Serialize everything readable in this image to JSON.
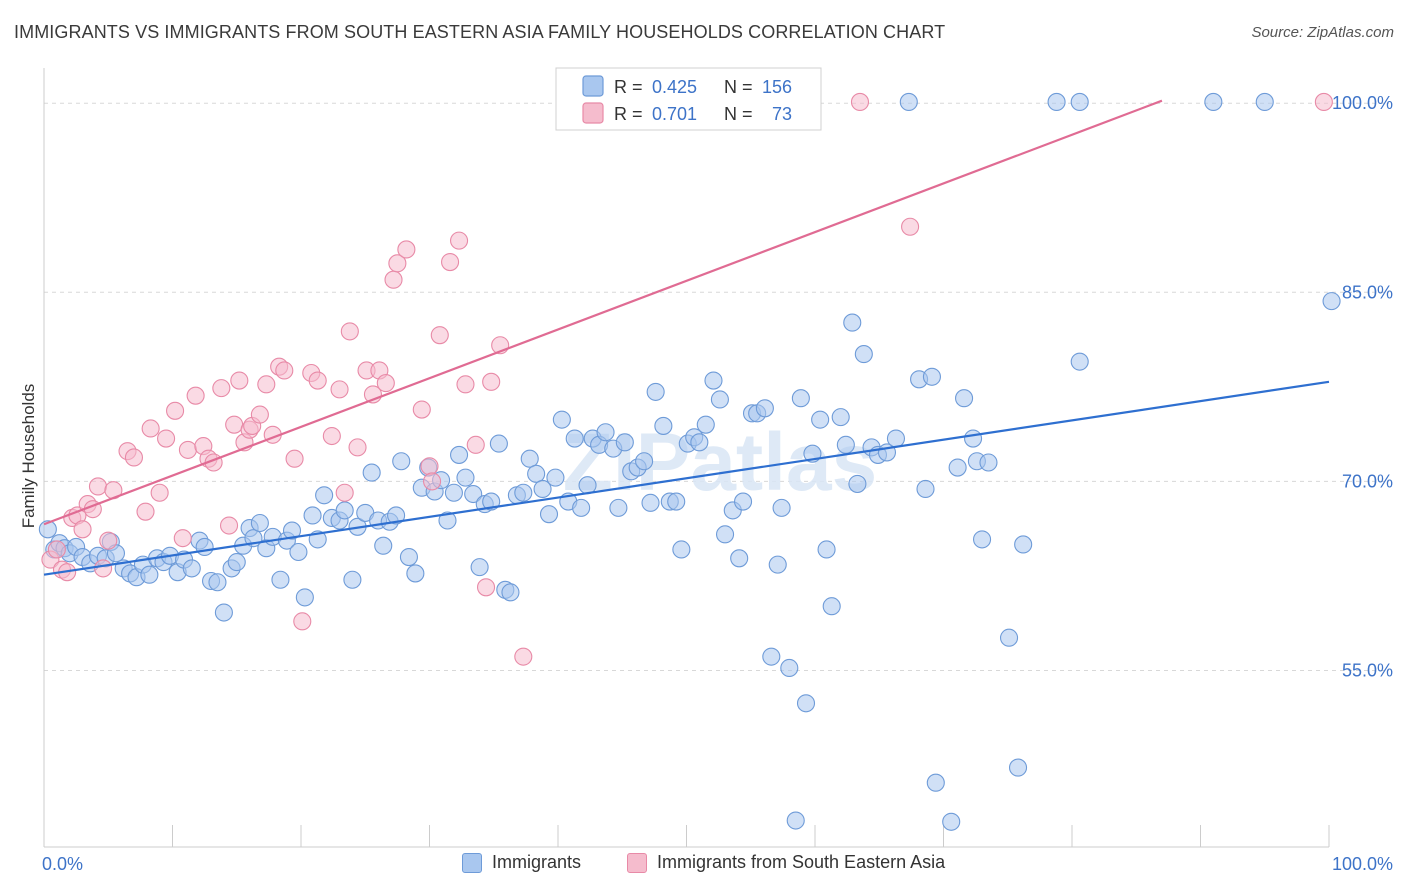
{
  "title": "IMMIGRANTS VS IMMIGRANTS FROM SOUTH EASTERN ASIA FAMILY HOUSEHOLDS CORRELATION CHART",
  "source": "Source: ZipAtlas.com",
  "watermark": "ZIPatlas",
  "colors": {
    "blue_fill": "#a9c7ef",
    "blue_stroke": "#6e9bd8",
    "blue_line": "#2e6fd0",
    "pink_fill": "#f5bccd",
    "pink_stroke": "#e88aa7",
    "pink_line": "#e06b93",
    "axis_label": "#3d73c8",
    "grid": "#d8d8d8"
  },
  "legend_top": {
    "rows": [
      {
        "r_label": "R =",
        "r_value": "0.425",
        "n_label": "N =",
        "n_value": "156"
      },
      {
        "r_label": "R =",
        "r_value": "0.701",
        "n_label": "N =",
        "n_value": "73"
      }
    ]
  },
  "legend_bottom": {
    "items": [
      "Immigrants",
      "Immigrants from South Eastern Asia"
    ]
  },
  "chart_data": {
    "type": "scatter",
    "title": "IMMIGRANTS VS IMMIGRANTS FROM SOUTH EASTERN ASIA FAMILY HOUSEHOLDS CORRELATION CHART",
    "xlabel": "",
    "ylabel": "Family Households",
    "xlim": [
      0,
      100
    ],
    "ylim": [
      41,
      102
    ],
    "x_tick_labels": [
      "0.0%",
      "100.0%"
    ],
    "y_ticks": [
      55,
      70,
      85,
      100
    ],
    "y_tick_labels": [
      "55.0%",
      "70.0%",
      "85.0%",
      "100.0%"
    ],
    "grid": true,
    "series": [
      {
        "name": "Immigrants",
        "color": "#6e9bd8",
        "trend": {
          "x": [
            0,
            100
          ],
          "y": [
            62.6,
            77.9
          ]
        },
        "points": [
          [
            0.3,
            66.2
          ],
          [
            0.8,
            64.6
          ],
          [
            1.2,
            65.1
          ],
          [
            1.6,
            64.7
          ],
          [
            2,
            64.3
          ],
          [
            2.5,
            64.8
          ],
          [
            3,
            64
          ],
          [
            3.6,
            63.5
          ],
          [
            4.2,
            64.1
          ],
          [
            4.8,
            63.9
          ],
          [
            5.2,
            65.2
          ],
          [
            5.6,
            64.3
          ],
          [
            6.2,
            63.1
          ],
          [
            6.7,
            62.7
          ],
          [
            7.2,
            62.4
          ],
          [
            7.7,
            63.4
          ],
          [
            8.2,
            62.6
          ],
          [
            8.8,
            63.9
          ],
          [
            9.3,
            63.6
          ],
          [
            9.8,
            64.1
          ],
          [
            10.4,
            62.8
          ],
          [
            10.9,
            63.8
          ],
          [
            11.5,
            63.1
          ],
          [
            12.1,
            65.3
          ],
          [
            12.5,
            64.8
          ],
          [
            13,
            62.1
          ],
          [
            13.5,
            62
          ],
          [
            14,
            59.6
          ],
          [
            14.6,
            63.1
          ],
          [
            15,
            63.6
          ],
          [
            15.5,
            64.9
          ],
          [
            16,
            66.3
          ],
          [
            16.3,
            65.5
          ],
          [
            16.8,
            66.7
          ],
          [
            17.3,
            64.7
          ],
          [
            17.8,
            65.6
          ],
          [
            18.4,
            62.2
          ],
          [
            18.9,
            65.3
          ],
          [
            19.3,
            66.1
          ],
          [
            19.8,
            64.4
          ],
          [
            20.3,
            60.8
          ],
          [
            20.9,
            67.3
          ],
          [
            21.3,
            65.4
          ],
          [
            21.8,
            68.9
          ],
          [
            22.4,
            67.1
          ],
          [
            23,
            66.9
          ],
          [
            23.4,
            67.7
          ],
          [
            24,
            62.2
          ],
          [
            24.4,
            66.4
          ],
          [
            25,
            67.5
          ],
          [
            25.5,
            70.7
          ],
          [
            26,
            66.9
          ],
          [
            26.4,
            64.9
          ],
          [
            26.9,
            66.8
          ],
          [
            27.4,
            67.3
          ],
          [
            27.8,
            71.6
          ],
          [
            28.4,
            64
          ],
          [
            28.9,
            62.7
          ],
          [
            29.4,
            69.5
          ],
          [
            29.9,
            71.1
          ],
          [
            30.4,
            69.2
          ],
          [
            30.9,
            70.1
          ],
          [
            31.4,
            66.9
          ],
          [
            31.9,
            69.1
          ],
          [
            32.3,
            72.1
          ],
          [
            32.8,
            70.3
          ],
          [
            33.4,
            69
          ],
          [
            33.9,
            63.2
          ],
          [
            34.3,
            68.2
          ],
          [
            34.8,
            68.4
          ],
          [
            35.4,
            73
          ],
          [
            35.9,
            61.4
          ],
          [
            36.3,
            61.2
          ],
          [
            36.8,
            68.9
          ],
          [
            37.3,
            69.1
          ],
          [
            37.8,
            71.8
          ],
          [
            38.3,
            70.6
          ],
          [
            38.8,
            69.4
          ],
          [
            39.3,
            67.4
          ],
          [
            39.8,
            70.3
          ],
          [
            40.3,
            74.9
          ],
          [
            40.8,
            68.4
          ],
          [
            41.3,
            73.4
          ],
          [
            41.8,
            67.9
          ],
          [
            42.3,
            69.7
          ],
          [
            42.7,
            73.4
          ],
          [
            43.2,
            72.9
          ],
          [
            43.7,
            73.9
          ],
          [
            44.3,
            72.6
          ],
          [
            44.7,
            67.9
          ],
          [
            45.2,
            73.1
          ],
          [
            45.7,
            70.8
          ],
          [
            46.2,
            71.1
          ],
          [
            46.7,
            71.6
          ],
          [
            47.2,
            68.3
          ],
          [
            47.6,
            77.1
          ],
          [
            48.2,
            74.4
          ],
          [
            48.7,
            68.4
          ],
          [
            49.2,
            68.4
          ],
          [
            49.6,
            64.6
          ],
          [
            50.1,
            73
          ],
          [
            50.6,
            73.5
          ],
          [
            51,
            73.1
          ],
          [
            51.5,
            74.5
          ],
          [
            52.1,
            78
          ],
          [
            52.6,
            76.5
          ],
          [
            53,
            65.8
          ],
          [
            53.6,
            67.7
          ],
          [
            54.1,
            63.9
          ],
          [
            54.4,
            68.4
          ],
          [
            55.1,
            75.4
          ],
          [
            55.5,
            75.4
          ],
          [
            56.1,
            75.8
          ],
          [
            56.6,
            56.1
          ],
          [
            57.1,
            63.4
          ],
          [
            57.4,
            67.9
          ],
          [
            58,
            55.2
          ],
          [
            58.5,
            43.1
          ],
          [
            58.9,
            76.6
          ],
          [
            59.3,
            52.4
          ],
          [
            59.8,
            72.2
          ],
          [
            60.4,
            74.9
          ],
          [
            60.9,
            64.6
          ],
          [
            61.3,
            60.1
          ],
          [
            62,
            75.1
          ],
          [
            62.4,
            72.9
          ],
          [
            62.9,
            82.6
          ],
          [
            63.3,
            69.8
          ],
          [
            63.8,
            80.1
          ],
          [
            64.4,
            72.7
          ],
          [
            64.9,
            72.1
          ],
          [
            65.6,
            72.3
          ],
          [
            66.3,
            73.4
          ],
          [
            68.1,
            78.1
          ],
          [
            68.6,
            69.4
          ],
          [
            69.1,
            78.3
          ],
          [
            69.4,
            46.1
          ],
          [
            70.6,
            43
          ],
          [
            71.1,
            71.1
          ],
          [
            71.6,
            76.6
          ],
          [
            72.3,
            73.4
          ],
          [
            72.6,
            71.6
          ],
          [
            73,
            65.4
          ],
          [
            73.5,
            71.5
          ],
          [
            75.1,
            57.6
          ],
          [
            75.8,
            47.3
          ],
          [
            76.2,
            65
          ],
          [
            80.6,
            79.5
          ],
          [
            100.2,
            84.3
          ],
          [
            67.3,
            100.1
          ],
          [
            78.8,
            100.1
          ],
          [
            80.6,
            100.1
          ],
          [
            91,
            100.1
          ],
          [
            95,
            100.1
          ]
        ]
      },
      {
        "name": "Immigrants from South Eastern Asia",
        "color": "#e88aa7",
        "trend": {
          "x": [
            0,
            87
          ],
          "y": [
            66.6,
            100.2
          ]
        },
        "points": [
          [
            0.5,
            63.8
          ],
          [
            1,
            64.6
          ],
          [
            1.4,
            63
          ],
          [
            1.8,
            62.8
          ],
          [
            2.2,
            67.1
          ],
          [
            2.6,
            67.3
          ],
          [
            3,
            66.2
          ],
          [
            3.4,
            68.2
          ],
          [
            3.8,
            67.8
          ],
          [
            4.2,
            69.6
          ],
          [
            4.6,
            63.1
          ],
          [
            5,
            65.3
          ],
          [
            5.4,
            69.3
          ],
          [
            6.5,
            72.4
          ],
          [
            7,
            71.9
          ],
          [
            7.9,
            67.6
          ],
          [
            8.3,
            74.2
          ],
          [
            9,
            69.1
          ],
          [
            9.5,
            73.4
          ],
          [
            10.2,
            75.6
          ],
          [
            10.8,
            65.5
          ],
          [
            11.2,
            72.5
          ],
          [
            11.8,
            76.8
          ],
          [
            12.4,
            72.8
          ],
          [
            12.8,
            71.8
          ],
          [
            13.2,
            71.5
          ],
          [
            13.8,
            77.4
          ],
          [
            14.4,
            66.5
          ],
          [
            14.8,
            74.5
          ],
          [
            15.2,
            78
          ],
          [
            15.6,
            73.1
          ],
          [
            16,
            74.1
          ],
          [
            16.2,
            74.4
          ],
          [
            16.8,
            75.3
          ],
          [
            17.3,
            77.7
          ],
          [
            17.8,
            73.7
          ],
          [
            18.3,
            79.1
          ],
          [
            18.7,
            78.8
          ],
          [
            19.5,
            71.8
          ],
          [
            20.1,
            58.9
          ],
          [
            20.8,
            78.6
          ],
          [
            21.3,
            78
          ],
          [
            22.4,
            73.6
          ],
          [
            23,
            77.3
          ],
          [
            23.4,
            69.1
          ],
          [
            23.8,
            81.9
          ],
          [
            24.4,
            72.7
          ],
          [
            25.1,
            78.8
          ],
          [
            25.6,
            76.9
          ],
          [
            26.1,
            78.8
          ],
          [
            26.6,
            77.8
          ],
          [
            27.2,
            86
          ],
          [
            27.5,
            87.3
          ],
          [
            28.2,
            88.4
          ],
          [
            29.4,
            75.7
          ],
          [
            30,
            71.2
          ],
          [
            30.2,
            70
          ],
          [
            30.8,
            81.6
          ],
          [
            31.6,
            87.4
          ],
          [
            32.3,
            89.1
          ],
          [
            32.8,
            77.7
          ],
          [
            33.6,
            72.9
          ],
          [
            34.4,
            61.6
          ],
          [
            34.8,
            77.9
          ],
          [
            35.5,
            80.8
          ],
          [
            37.3,
            56.1
          ],
          [
            63.5,
            100.1
          ],
          [
            67.4,
            90.2
          ],
          [
            99.6,
            100.1
          ]
        ]
      }
    ]
  }
}
